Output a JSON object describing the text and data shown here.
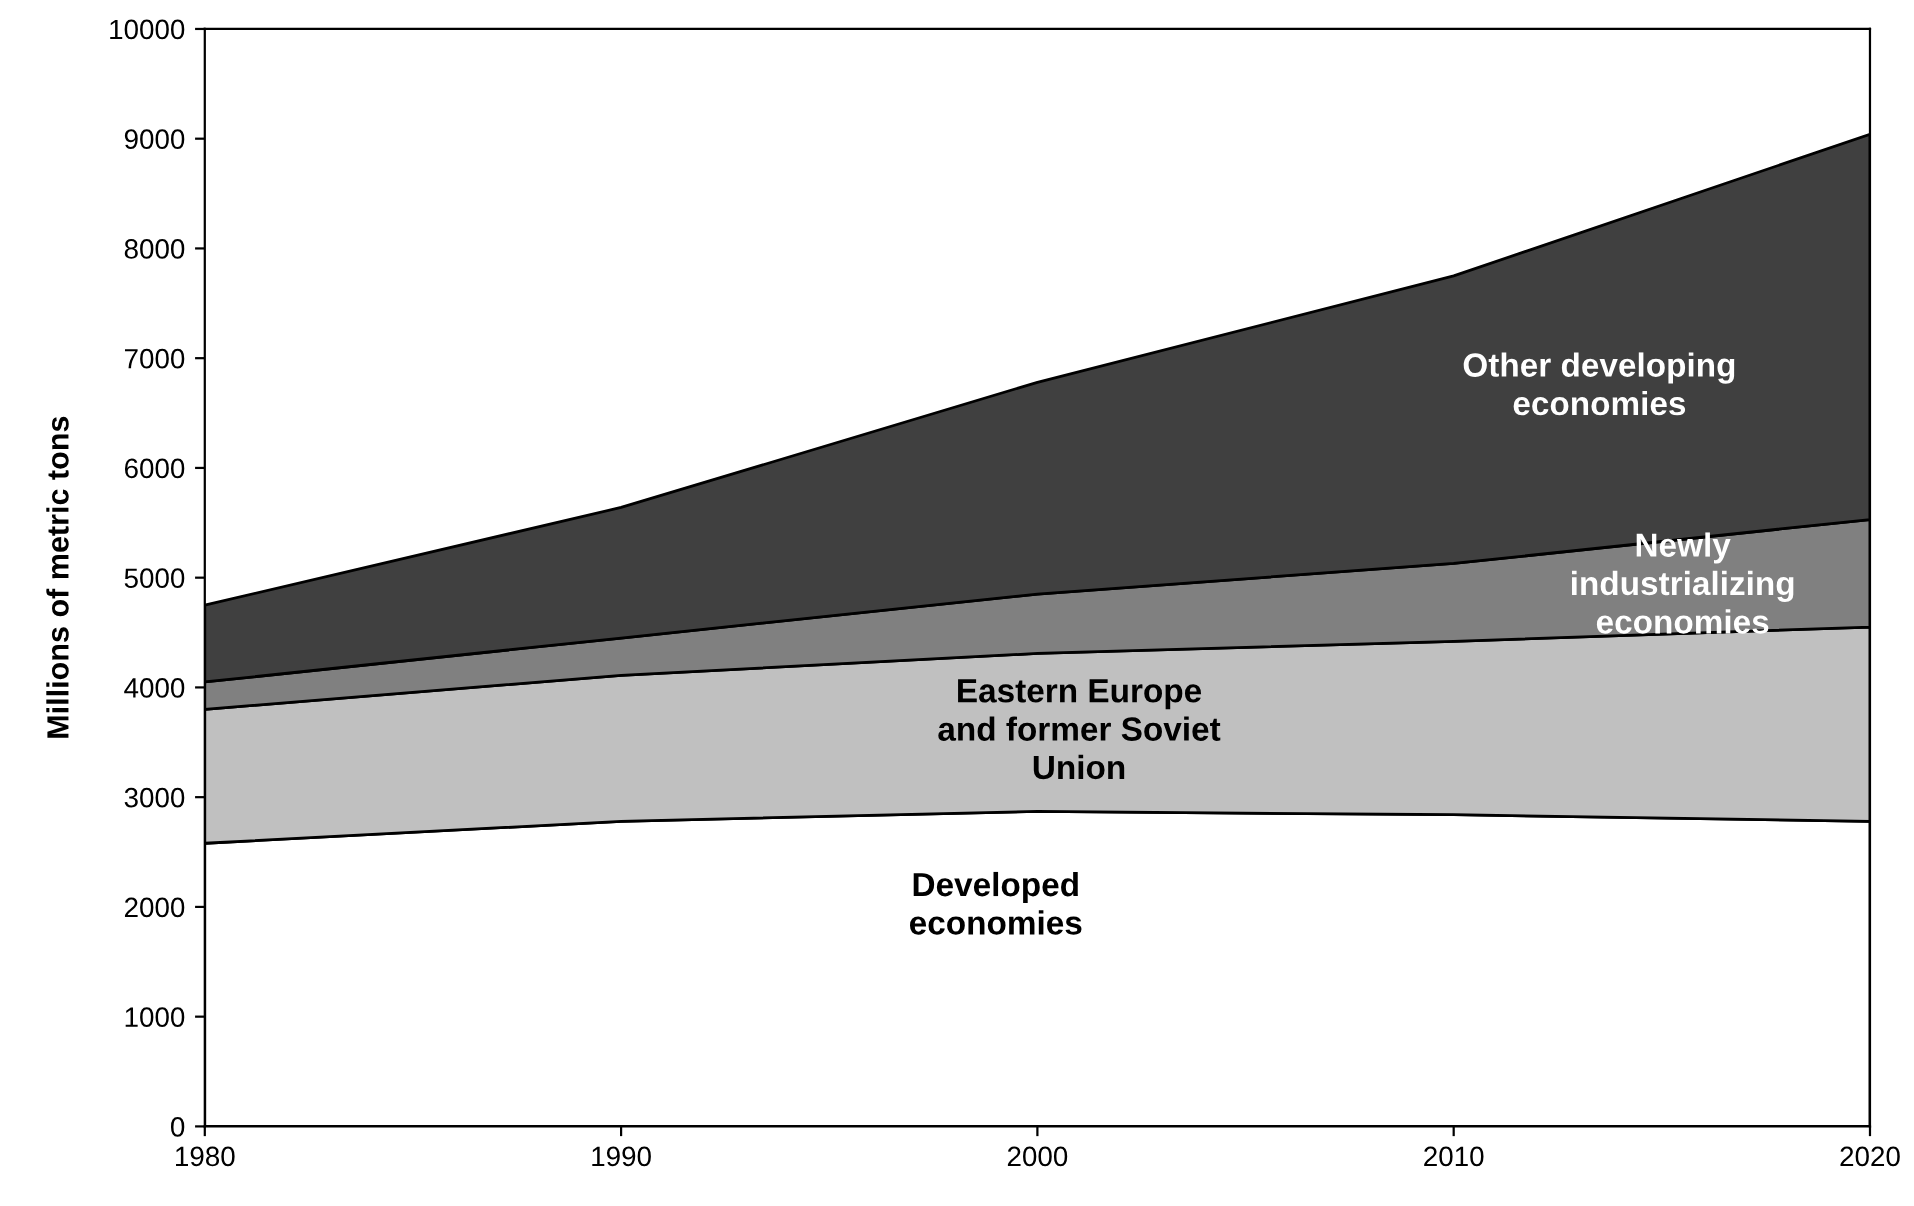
{
  "chart_data": {
    "type": "area",
    "stacked": true,
    "ylabel": "Millions of metric tons",
    "x": [
      1980,
      1990,
      2000,
      2010,
      2020
    ],
    "series": [
      {
        "name": "Developed economies",
        "color": "#ffffff",
        "values": [
          2580,
          2780,
          2870,
          2840,
          2780
        ]
      },
      {
        "name": "Eastern Europe and former Soviet Union",
        "color": "#c0c0c0",
        "values": [
          1220,
          1330,
          1440,
          1580,
          1770
        ]
      },
      {
        "name": "Newly industrializing economies",
        "color": "#808080",
        "values": [
          250,
          340,
          540,
          710,
          980
        ]
      },
      {
        "name": "Other developing economies",
        "color": "#404040",
        "values": [
          700,
          1190,
          1930,
          2620,
          3510
        ]
      }
    ],
    "xlim": [
      1980,
      2020
    ],
    "xticks": [
      1980,
      1990,
      2000,
      2010,
      2020
    ],
    "ylim": [
      0,
      10000
    ],
    "yticks": [
      0,
      1000,
      2000,
      3000,
      4000,
      5000,
      6000,
      7000,
      8000,
      9000,
      10000
    ],
    "grid": false
  }
}
